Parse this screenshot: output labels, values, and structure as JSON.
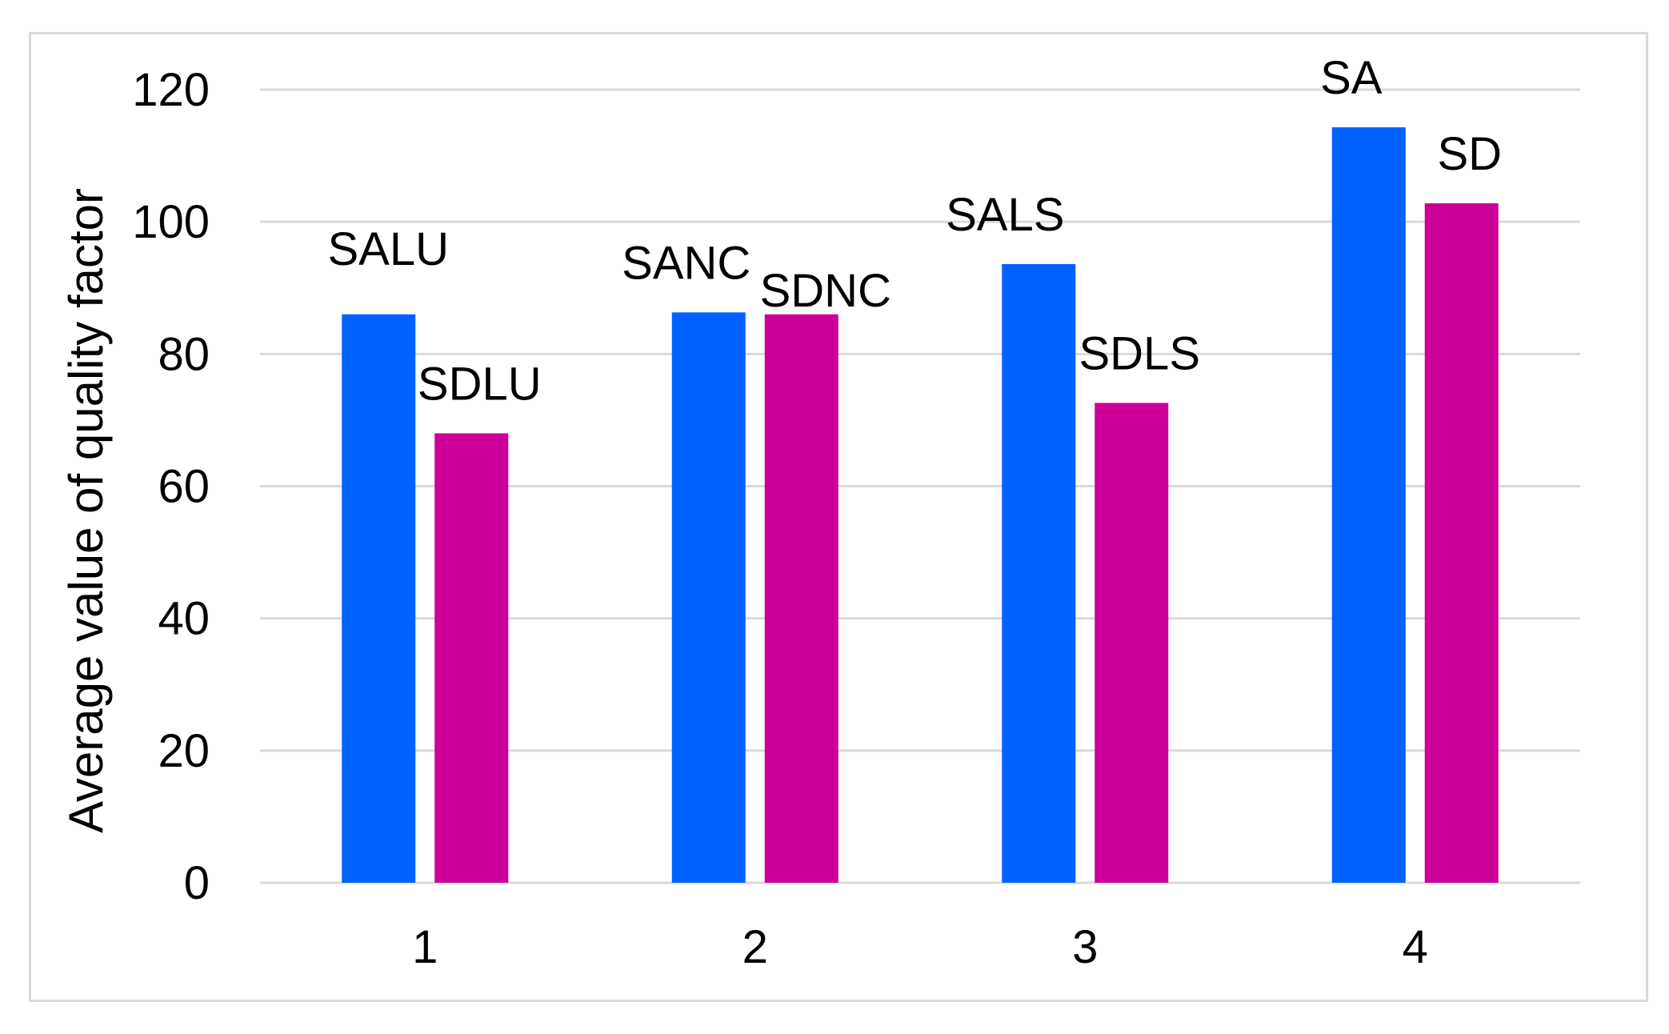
{
  "chart_data": {
    "type": "bar",
    "title": "",
    "xlabel": "",
    "ylabel": "Average value of quality factor",
    "categories": [
      "1",
      "2",
      "3",
      "4"
    ],
    "ylim": [
      0,
      120
    ],
    "yticks": [
      0,
      20,
      40,
      60,
      80,
      100,
      120
    ],
    "grid": true,
    "legend": "none",
    "series": [
      {
        "color": "#0062ff",
        "values": [
          86,
          86.3,
          93.6,
          114.3
        ],
        "labels": [
          "SALU",
          "SANC",
          "SALS",
          "SA"
        ]
      },
      {
        "color": "#cc0099",
        "values": [
          68,
          86,
          72.6,
          102.8
        ],
        "labels": [
          "SDLU",
          "SDNC",
          "SDLS",
          "SD"
        ]
      }
    ]
  }
}
